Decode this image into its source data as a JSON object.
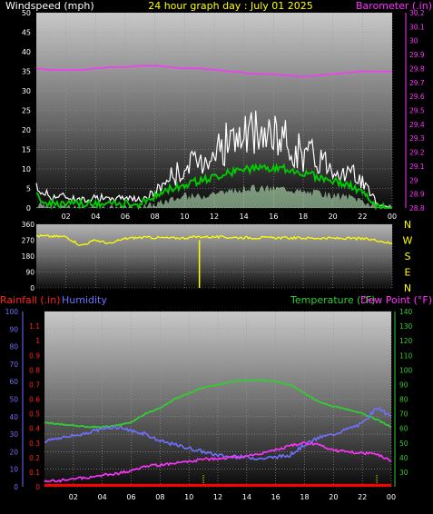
{
  "title": "24 hour graph day : July 01 2025",
  "colors": {
    "windspeed": "#ffffff",
    "windspeed_avg": "#00cc00",
    "windspeed_low": "#ccffcc",
    "barometer": "#ff33ff",
    "direction": "#ffff00",
    "rainfall": "#ff0000",
    "humidity": "#7070ff",
    "temperature": "#33cc33",
    "dewpoint": "#ff33ff",
    "rain_ticks": "#ffff00"
  },
  "chart_data": [
    {
      "type": "line",
      "title": "24 hour graph day : July 01 2025",
      "left_label": "Windspeed (mph)",
      "right_label": "Barometer (.in)",
      "x_ticks": [
        "02",
        "04",
        "06",
        "08",
        "10",
        "12",
        "14",
        "16",
        "18",
        "20",
        "22",
        "00"
      ],
      "y_left_ticks": [
        "0",
        "5",
        "10",
        "15",
        "20",
        "25",
        "30",
        "35",
        "40",
        "45",
        "50"
      ],
      "y_right_ticks": [
        "28.8",
        "28.9",
        "29",
        "29.1",
        "29.2",
        "29.3",
        "29.4",
        "29.5",
        "29.6",
        "29.7",
        "29.8",
        "29.9",
        "30",
        "30.1",
        "30.2"
      ],
      "ylim_left": [
        0,
        50
      ],
      "ylim_right": [
        28.8,
        30.2
      ],
      "grid": true,
      "x_hours": [
        0,
        1,
        2,
        3,
        4,
        5,
        6,
        7,
        8,
        9,
        10,
        11,
        12,
        13,
        14,
        15,
        16,
        17,
        18,
        19,
        20,
        21,
        22,
        23,
        24
      ],
      "series": [
        {
          "key": "gust",
          "axis": "left",
          "values": [
            5,
            3,
            3,
            2,
            3,
            2,
            3,
            2,
            4,
            8,
            10,
            12,
            15,
            17,
            18,
            19,
            18,
            17,
            14,
            13,
            11,
            9,
            7,
            1,
            0
          ]
        },
        {
          "key": "avg",
          "axis": "left",
          "values": [
            3,
            1,
            1,
            1,
            1,
            1,
            1,
            1,
            3,
            5,
            6,
            7,
            8,
            9,
            10,
            10,
            10,
            10,
            9,
            8,
            7,
            6,
            4,
            0,
            0
          ]
        },
        {
          "key": "low",
          "axis": "left",
          "values": [
            1,
            0,
            0,
            0,
            0,
            0,
            0,
            0,
            1,
            2,
            3,
            3,
            4,
            4,
            5,
            5,
            5,
            5,
            4,
            4,
            3,
            3,
            2,
            0,
            0
          ]
        },
        {
          "key": "baro",
          "axis": "right",
          "values": [
            29.8,
            29.79,
            29.79,
            29.79,
            29.8,
            29.81,
            29.81,
            29.82,
            29.82,
            29.81,
            29.8,
            29.8,
            29.79,
            29.78,
            29.77,
            29.76,
            29.76,
            29.75,
            29.74,
            29.75,
            29.76,
            29.77,
            29.78,
            29.78,
            29.78
          ]
        }
      ]
    },
    {
      "type": "line",
      "y_left_ticks": [
        "0",
        "90",
        "180",
        "270",
        "360"
      ],
      "y_right_ticks": [
        "N",
        "W",
        "S",
        "E",
        "N"
      ],
      "ylim": [
        0,
        360
      ],
      "grid": true,
      "x_hours": [
        0,
        1,
        2,
        3,
        4,
        5,
        6,
        7,
        8,
        9,
        10,
        11,
        12,
        13,
        14,
        15,
        16,
        17,
        18,
        19,
        20,
        21,
        22,
        23,
        24
      ],
      "series": [
        {
          "key": "direction",
          "values": [
            295,
            292,
            290,
            240,
            270,
            250,
            280,
            285,
            285,
            282,
            283,
            290,
            288,
            286,
            285,
            284,
            284,
            283,
            282,
            282,
            281,
            280,
            278,
            270,
            250
          ]
        }
      ],
      "spike": {
        "hour": 11,
        "value": 0
      }
    },
    {
      "type": "line",
      "rain_label": "Rainfall (.in)",
      "humidity_label": "Humidity",
      "temp_label": "Temperature (°F)",
      "dew_label": "Dew Point (°F)",
      "x_ticks": [
        "02",
        "04",
        "06",
        "08",
        "10",
        "12",
        "14",
        "16",
        "18",
        "20",
        "22",
        "00"
      ],
      "humidity_ticks": [
        "0",
        "10",
        "20",
        "30",
        "40",
        "50",
        "60",
        "70",
        "80",
        "90",
        "100"
      ],
      "rain_ticks": [
        "0",
        "0.1",
        "0.2",
        "0.3",
        "0.4",
        "0.5",
        "0.6",
        "0.7",
        "0.8",
        "0.9",
        "1",
        "1.1"
      ],
      "temp_ticks": [
        "30",
        "40",
        "50",
        "60",
        "70",
        "80",
        "90",
        "100",
        "110",
        "120",
        "130",
        "140"
      ],
      "ylim_humidity": [
        0,
        100
      ],
      "ylim_temp": [
        20,
        140
      ],
      "ylim_rain": [
        0,
        1.2
      ],
      "grid": true,
      "x_hours": [
        0,
        1,
        2,
        3,
        4,
        5,
        6,
        7,
        8,
        9,
        10,
        11,
        12,
        13,
        14,
        15,
        16,
        17,
        18,
        19,
        20,
        21,
        22,
        23,
        24
      ],
      "series": [
        {
          "key": "humidity",
          "axis": "humidity",
          "values": [
            26,
            28,
            29,
            31,
            33,
            34,
            32,
            30,
            26,
            24,
            22,
            20,
            18,
            17,
            17,
            16,
            17,
            18,
            24,
            28,
            30,
            33,
            36,
            45,
            40
          ]
        },
        {
          "key": "temperature",
          "axis": "temp",
          "values": [
            64,
            63,
            62,
            61,
            61,
            62,
            64,
            70,
            74,
            80,
            84,
            88,
            90,
            92,
            93,
            93,
            92,
            90,
            84,
            78,
            75,
            73,
            70,
            66,
            61
          ]
        },
        {
          "key": "dewpoint",
          "axis": "temp",
          "values": [
            24,
            24,
            26,
            26,
            28,
            29,
            31,
            34,
            35,
            36,
            37,
            39,
            39,
            40,
            41,
            43,
            45,
            48,
            50,
            49,
            45,
            44,
            43,
            42,
            38
          ]
        },
        {
          "key": "rainfall",
          "axis": "rain",
          "values": [
            0,
            0,
            0,
            0,
            0,
            0,
            0,
            0,
            0,
            0,
            0,
            0,
            0,
            0,
            0,
            0,
            0,
            0,
            0,
            0,
            0,
            0,
            0,
            0,
            0
          ]
        }
      ],
      "rain_markers": [
        11,
        23
      ]
    }
  ]
}
